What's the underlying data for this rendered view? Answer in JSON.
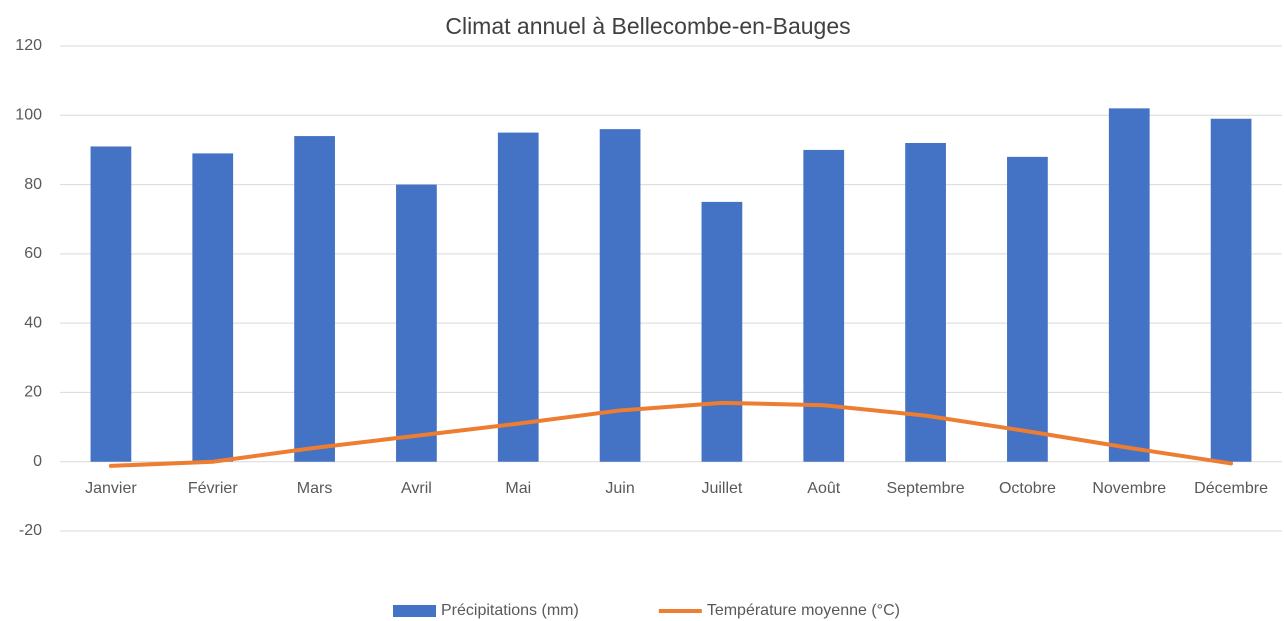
{
  "chart_data": {
    "type": "bar",
    "title": "Climat annuel à Bellecombe-en-Bauges",
    "categories": [
      "Janvier",
      "Février",
      "Mars",
      "Avril",
      "Mai",
      "Juin",
      "Juillet",
      "Août",
      "Septembre",
      "Octobre",
      "Novembre",
      "Décembre"
    ],
    "series": [
      {
        "name": "Précipitations (mm)",
        "type": "bar",
        "color": "#4472c4",
        "values": [
          91,
          89,
          94,
          80,
          95,
          96,
          75,
          90,
          92,
          88,
          102,
          99
        ]
      },
      {
        "name": "Température moyenne (°C)",
        "type": "line",
        "color": "#ed7d31",
        "values": [
          -1.2,
          0,
          4,
          7.5,
          11,
          14.8,
          17,
          16.3,
          13.3,
          8.8,
          4,
          -0.5
        ]
      }
    ],
    "ylim": [
      -20,
      120
    ],
    "yticks": [
      -20,
      0,
      20,
      40,
      60,
      80,
      100,
      120
    ],
    "grid": true,
    "legend": "bottom"
  }
}
